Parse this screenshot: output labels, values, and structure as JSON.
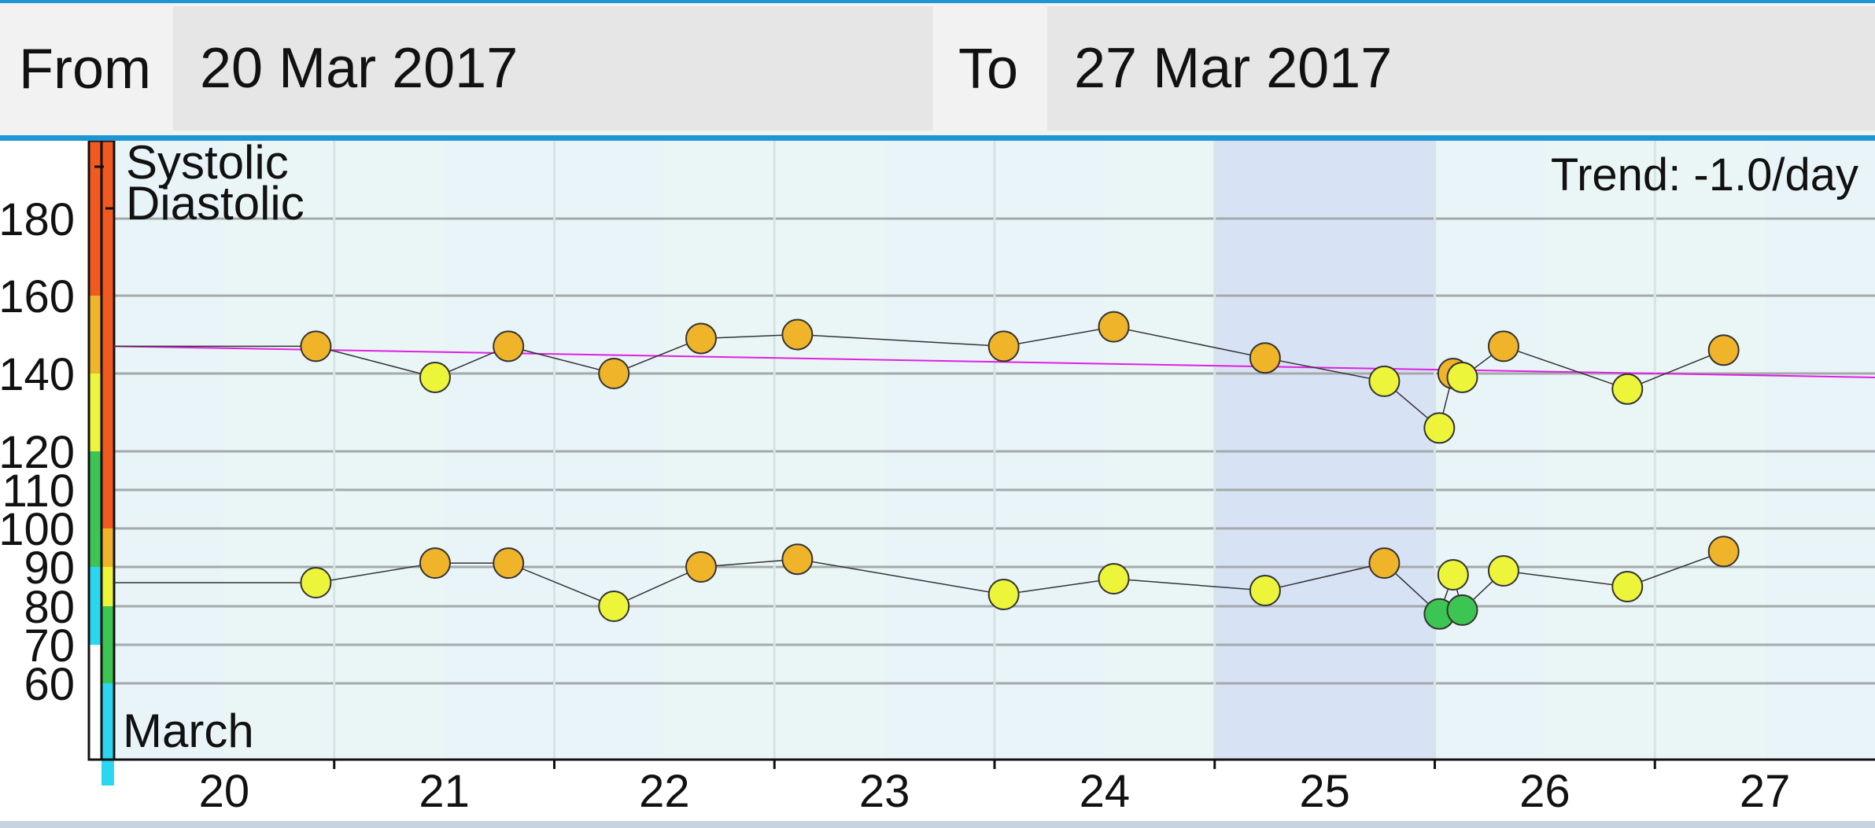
{
  "header": {
    "from_label": "From",
    "from_value": "20 Mar 2017",
    "to_label": "To",
    "to_value": "27 Mar 2017"
  },
  "chart_data": {
    "type": "line",
    "title": "",
    "trend_label": "Trend: -1.0/day",
    "month_label": "March",
    "xlabel": "",
    "ylabel": "",
    "x_ticks": [
      "20",
      "21",
      "22",
      "23",
      "24",
      "25",
      "26",
      "27"
    ],
    "xlim": [
      "19 Mar 2017 12:00",
      "27 Mar 2017 12:00"
    ],
    "ylim": [
      40,
      200
    ],
    "y_ticks": [
      60,
      70,
      80,
      90,
      100,
      110,
      120,
      140,
      160,
      180
    ],
    "legend": [
      "Systolic",
      "Diastolic"
    ],
    "highlight_range": [
      "24 Mar 2017 12:00",
      "25 Mar 2017 12:00"
    ],
    "colors": {
      "danger": "#f05a1e",
      "warning": "#f0b42a",
      "elevated": "#ecf53a",
      "normal": "#3cc552",
      "low": "#2bd7f0",
      "line": "#333333",
      "trend": "#e020e0",
      "highlight": "#d8e2f5"
    },
    "series": [
      {
        "name": "Systolic",
        "points": [
          {
            "x": "20 Mar 2017 10:00",
            "y": 147,
            "level": "warning"
          },
          {
            "x": "20 Mar 2017 23:00",
            "y": 139,
            "level": "elevated"
          },
          {
            "x": "21 Mar 2017 07:00",
            "y": 147,
            "level": "warning"
          },
          {
            "x": "21 Mar 2017 18:30",
            "y": 140,
            "level": "warning"
          },
          {
            "x": "22 Mar 2017 04:00",
            "y": 149,
            "level": "warning"
          },
          {
            "x": "22 Mar 2017 14:30",
            "y": 150,
            "level": "warning"
          },
          {
            "x": "23 Mar 2017 13:00",
            "y": 147,
            "level": "warning"
          },
          {
            "x": "24 Mar 2017 01:00",
            "y": 152,
            "level": "warning"
          },
          {
            "x": "24 Mar 2017 17:30",
            "y": 144,
            "level": "warning"
          },
          {
            "x": "25 Mar 2017 06:30",
            "y": 138,
            "level": "elevated"
          },
          {
            "x": "25 Mar 2017 12:30",
            "y": 126,
            "level": "elevated"
          },
          {
            "x": "25 Mar 2017 14:00",
            "y": 140,
            "level": "warning"
          },
          {
            "x": "25 Mar 2017 15:00",
            "y": 139,
            "level": "elevated"
          },
          {
            "x": "25 Mar 2017 19:30",
            "y": 147,
            "level": "warning"
          },
          {
            "x": "26 Mar 2017 09:00",
            "y": 136,
            "level": "elevated"
          },
          {
            "x": "26 Mar 2017 19:30",
            "y": 146,
            "level": "warning"
          }
        ]
      },
      {
        "name": "Diastolic",
        "points": [
          {
            "x": "20 Mar 2017 10:00",
            "y": 86,
            "level": "elevated"
          },
          {
            "x": "20 Mar 2017 23:00",
            "y": 91,
            "level": "warning"
          },
          {
            "x": "21 Mar 2017 07:00",
            "y": 91,
            "level": "warning"
          },
          {
            "x": "21 Mar 2017 18:30",
            "y": 80,
            "level": "elevated"
          },
          {
            "x": "22 Mar 2017 04:00",
            "y": 90,
            "level": "warning"
          },
          {
            "x": "22 Mar 2017 14:30",
            "y": 92,
            "level": "warning"
          },
          {
            "x": "23 Mar 2017 13:00",
            "y": 83,
            "level": "elevated"
          },
          {
            "x": "24 Mar 2017 01:00",
            "y": 87,
            "level": "elevated"
          },
          {
            "x": "24 Mar 2017 17:30",
            "y": 84,
            "level": "elevated"
          },
          {
            "x": "25 Mar 2017 06:30",
            "y": 91,
            "level": "warning"
          },
          {
            "x": "25 Mar 2017 12:30",
            "y": 78,
            "level": "normal"
          },
          {
            "x": "25 Mar 2017 14:00",
            "y": 88,
            "level": "elevated"
          },
          {
            "x": "25 Mar 2017 15:00",
            "y": 79,
            "level": "normal"
          },
          {
            "x": "25 Mar 2017 19:30",
            "y": 89,
            "level": "elevated"
          },
          {
            "x": "26 Mar 2017 09:00",
            "y": 85,
            "level": "elevated"
          },
          {
            "x": "26 Mar 2017 19:30",
            "y": 94,
            "level": "warning"
          }
        ]
      }
    ],
    "trend": {
      "from": {
        "x": "19 Mar 2017 12:00",
        "y": 147
      },
      "to": {
        "x": "27 Mar 2017 12:00",
        "y": 139
      }
    }
  }
}
